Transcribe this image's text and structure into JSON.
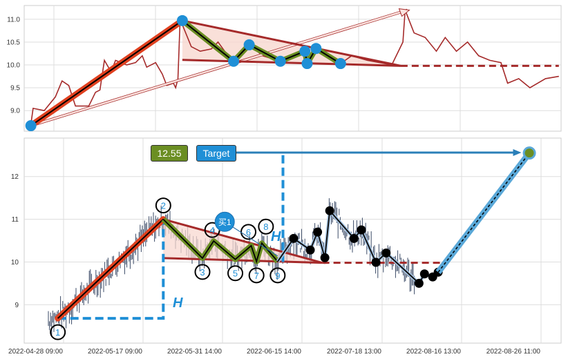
{
  "chart_data": [
    {
      "type": "line",
      "panel": "top",
      "yticks": [
        9.0,
        9.5,
        10.0,
        10.5,
        11.0
      ],
      "ylim": [
        8.55,
        11.3
      ],
      "xlim": [
        -3,
        238
      ],
      "grid": true,
      "colors": {
        "price": "#a52a2a",
        "pivot": "#1f8fd6",
        "up_leg": "#e0401f",
        "zigzag": "#6b8e23",
        "triangle_fill": "#f8d8d0",
        "triangle_line": "#a52a2a"
      },
      "price_series": [
        [
          0,
          8.7
        ],
        [
          1,
          9.05
        ],
        [
          6,
          9.0
        ],
        [
          11,
          9.3
        ],
        [
          14,
          9.65
        ],
        [
          17,
          9.55
        ],
        [
          20,
          9.1
        ],
        [
          26,
          9.1
        ],
        [
          29,
          9.4
        ],
        [
          31,
          9.45
        ],
        [
          33,
          10.1
        ],
        [
          36,
          9.85
        ],
        [
          38,
          10.1
        ],
        [
          43,
          10.0
        ],
        [
          47,
          10.05
        ],
        [
          50,
          10.2
        ],
        [
          52,
          9.95
        ],
        [
          56,
          10.05
        ],
        [
          59,
          9.8
        ],
        [
          61,
          9.55
        ],
        [
          64,
          9.6
        ],
        [
          65,
          9.5
        ],
        [
          66,
          9.7
        ],
        [
          67,
          11.0
        ],
        [
          72,
          10.4
        ],
        [
          76,
          10.3
        ],
        [
          81,
          10.35
        ],
        [
          84,
          10.5
        ],
        [
          87,
          10.3
        ],
        [
          91,
          10.1
        ],
        [
          98,
          10.45
        ],
        [
          104,
          10.2
        ],
        [
          112,
          10.08
        ],
        [
          123,
          10.35
        ],
        [
          124,
          10.03
        ],
        [
          128,
          10.36
        ],
        [
          139,
          10.03
        ],
        [
          144,
          10.2
        ],
        [
          151,
          10.1
        ],
        [
          162,
          10.0
        ],
        [
          167,
          10.5
        ],
        [
          168,
          11.2
        ],
        [
          172,
          10.7
        ],
        [
          177,
          10.6
        ],
        [
          182,
          10.3
        ],
        [
          186,
          10.6
        ],
        [
          191,
          10.3
        ],
        [
          196,
          10.5
        ],
        [
          201,
          10.2
        ],
        [
          206,
          10.1
        ],
        [
          211,
          10.05
        ],
        [
          214,
          9.6
        ],
        [
          219,
          9.7
        ],
        [
          224,
          9.5
        ],
        [
          231,
          9.7
        ],
        [
          237,
          9.75
        ]
      ],
      "pivots": [
        [
          0,
          8.67
        ],
        [
          68,
          10.97
        ],
        [
          91,
          10.08
        ],
        [
          98,
          10.44
        ],
        [
          112,
          10.08
        ],
        [
          123,
          10.3
        ],
        [
          124,
          10.03
        ],
        [
          128,
          10.36
        ],
        [
          139,
          10.03
        ]
      ],
      "triangle": {
        "upper": [
          [
            68,
            10.97
          ],
          [
            166,
            9.98
          ]
        ],
        "lower": [
          [
            68,
            10.11
          ],
          [
            166,
            9.98
          ]
        ],
        "dashed_end": 237
      },
      "arrow": [
        [
          0,
          8.67
        ],
        [
          169,
          11.2
        ]
      ]
    },
    {
      "type": "candlestick",
      "panel": "bottom",
      "xticks": [
        "2022-04-28 09:00",
        "2022-05-17 09:00",
        "2022-05-31 14:00",
        "2022-06-15 14:00",
        "2022-07-18 13:00",
        "2022-08-16 13:00",
        "2022-08-26 11:00"
      ],
      "yticks": [
        9,
        10,
        11,
        12
      ],
      "ylim": [
        8.1,
        12.9
      ],
      "grid": true,
      "colors": {
        "candles": "#3a4a66",
        "up_leg": "#e0401f",
        "zigzag": "#6b8e23",
        "projection": "#111111",
        "projection_glow": "#a8c8e8",
        "target_line": "#5aa8d8",
        "h_line": "#1f8fd6",
        "target_arrow": "#2a7fb8",
        "triangle_fill": "#f8d8d0",
        "triangle_line": "#a52a2a"
      },
      "wave_points": [
        {
          "label": "1",
          "date": "2022-04-27 00:00",
          "value": 8.68
        },
        {
          "label": "2",
          "date": "2022-05-21 00:00",
          "value": 11.0
        },
        {
          "label": "3",
          "date": "2022-05-28 00:00",
          "value": 10.09
        },
        {
          "label": "4",
          "date": "2022-05-30 00:00",
          "value": 10.49
        },
        {
          "label": "5",
          "date": "2022-06-03 00:00",
          "value": 10.06
        },
        {
          "label": "6",
          "date": "2022-06-06 00:00",
          "value": 10.38
        },
        {
          "label": "7",
          "date": "2022-06-07 00:00",
          "value": 10.01
        },
        {
          "label": "8",
          "date": "2022-06-08 00:00",
          "value": 10.44
        },
        {
          "label": "9",
          "date": "2022-06-11 00:00",
          "value": 10.01
        }
      ],
      "projection_points": [
        [
          "2022-06-14 00:00",
          10.55
        ],
        [
          "2022-06-19 00:00",
          10.28
        ],
        [
          "2022-06-22 00:00",
          10.7
        ],
        [
          "2022-06-25 00:00",
          10.1
        ],
        [
          "2022-06-27 00:00",
          11.2
        ],
        [
          "2022-07-07 00:00",
          10.55
        ],
        [
          "2022-07-10 00:00",
          10.75
        ],
        [
          "2022-07-16 00:00",
          9.99
        ],
        [
          "2022-07-20 00:00",
          10.21
        ],
        [
          "2022-08-01 00:00",
          9.5
        ],
        [
          "2022-08-03 00:00",
          9.72
        ],
        [
          "2022-08-06 00:00",
          9.65
        ],
        [
          "2022-08-08 00:00",
          9.76
        ]
      ],
      "target": {
        "date": "2022-08-25 00:00",
        "value": 12.55
      },
      "triangle": {
        "upper": [
          [
            "2022-05-21 00:00",
            11.0
          ],
          [
            "2022-06-24 00:00",
            9.98
          ]
        ],
        "lower": [
          [
            "2022-05-21 00:00",
            10.09
          ],
          [
            "2022-06-24 00:00",
            9.98
          ]
        ],
        "dashed_end": "2022-08-09 00:00"
      },
      "buy_marker": {
        "label": "买1",
        "date": "2022-06-01 00:00",
        "value": 10.94,
        "arrow_to": [
          "2022-06-11 00:00",
          10.14
        ]
      },
      "target_arrow": {
        "from": "2022-06-03 00:00",
        "to": "2022-08-24 00:00",
        "value": 12.56
      },
      "h_markers": [
        {
          "label": "H",
          "line": [
            [
              "2022-04-27 00:00",
              8.68
            ],
            [
              "2022-05-21 00:00",
              8.68
            ],
            [
              "2022-05-21 00:00",
              11.0
            ]
          ]
        },
        {
          "label": "H",
          "line": [
            [
              "2022-06-12 00:00",
              12.5
            ],
            [
              "2022-06-12 00:00",
              10.0
            ]
          ]
        }
      ],
      "value_box": "12.55",
      "target_box": "Target"
    }
  ]
}
